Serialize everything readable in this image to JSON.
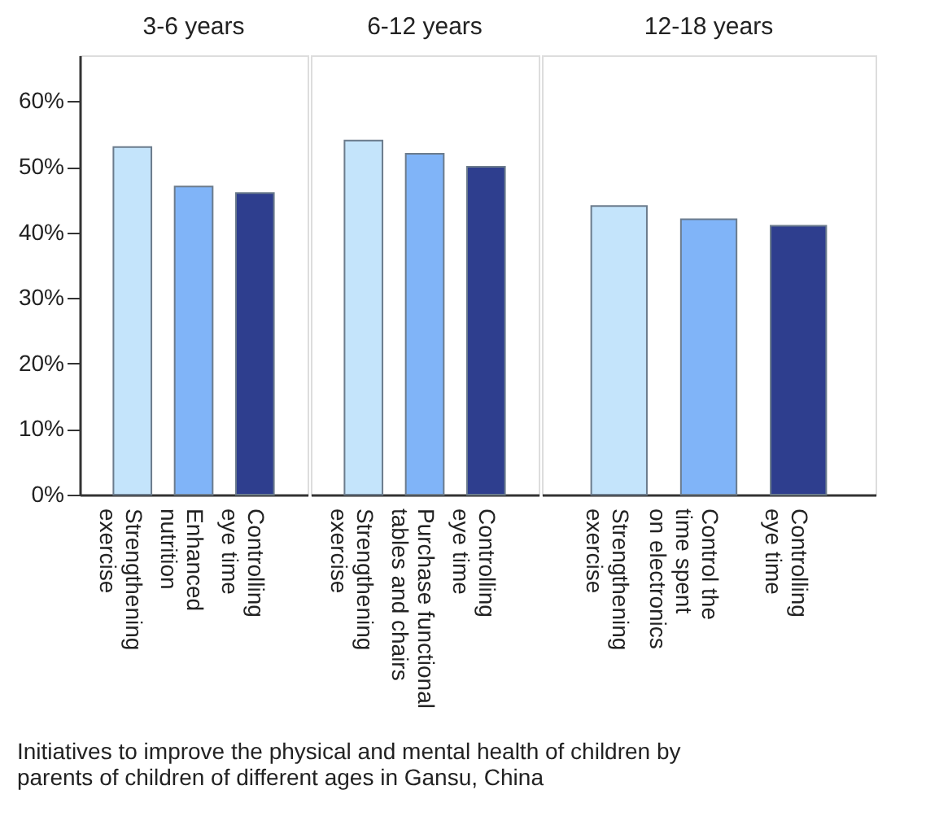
{
  "chart_data": [
    {
      "type": "bar",
      "title": "3-6 years",
      "categories": [
        "Strengthening\nexercise",
        "Enhanced\nnutrition",
        "Controlling\neye time"
      ],
      "values": [
        53,
        47,
        46
      ],
      "colors": [
        "#c4e4fb",
        "#80b4f8",
        "#2e3e8e"
      ],
      "ylim": [
        0,
        67
      ],
      "yticks": [
        {
          "value": 0,
          "label": "0%"
        },
        {
          "value": 10,
          "label": "10%"
        },
        {
          "value": 20,
          "label": "20%"
        },
        {
          "value": 30,
          "label": "30%"
        },
        {
          "value": 40,
          "label": "40%"
        },
        {
          "value": 50,
          "label": "50%"
        },
        {
          "value": 60,
          "label": "60%"
        }
      ],
      "grid": false,
      "annotations": [
        "Initiatives to improve the physical and mental health of children by parents of children of different ages in Gansu, China"
      ]
    },
    {
      "type": "bar",
      "title": "6-12 years",
      "categories": [
        "Strengthening\nexercise",
        "Purchase functional\ntables and chairs",
        "Controlling\neye time"
      ],
      "values": [
        54,
        52,
        50
      ],
      "colors": [
        "#c4e4fb",
        "#80b4f8",
        "#2e3e8e"
      ],
      "ylim": [
        0,
        67
      ],
      "tick_labels": "x",
      "grid": false
    },
    {
      "type": "bar",
      "title": "12-18 years",
      "categories": [
        "Strengthening\nexercise",
        "Control the\ntime spent\non electronics",
        "Controlling\neye time"
      ],
      "values": [
        44,
        42,
        41
      ],
      "colors": [
        "#c4e4fb",
        "#80b4f8",
        "#2e3e8e"
      ],
      "ylim": [
        0,
        67
      ],
      "tick_labels": "x",
      "grid": false
    }
  ]
}
